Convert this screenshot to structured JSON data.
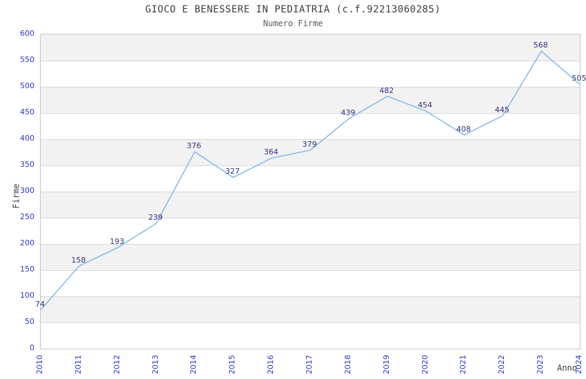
{
  "chart_data": {
    "type": "line",
    "title": "GIOCO E BENESSERE IN PEDIATRIA (c.f.92213060285)",
    "subtitle": "Numero Firme",
    "xlabel": "Anno",
    "ylabel": "Firme",
    "categories": [
      "2010",
      "2011",
      "2012",
      "2013",
      "2014",
      "2015",
      "2016",
      "2017",
      "2018",
      "2019",
      "2020",
      "2021",
      "2022",
      "2023",
      "2024"
    ],
    "values": [
      74,
      158,
      193,
      239,
      376,
      327,
      364,
      379,
      439,
      482,
      454,
      408,
      445,
      568,
      505
    ],
    "ylim": [
      0,
      600
    ],
    "ytick_step": 50,
    "grid": "horizontal",
    "legend": "none",
    "markers": "none",
    "colors": {
      "line": "#85b8ea",
      "tick_label": "#2b35cd",
      "data_label": "#31317d",
      "band": "#f2f2f2",
      "gridline": "#d9d9d9",
      "plot_border": "#c6c6c6",
      "title": "#3c3c3c",
      "subtitle": "#5a5a5a",
      "background": "#ffffff"
    }
  }
}
